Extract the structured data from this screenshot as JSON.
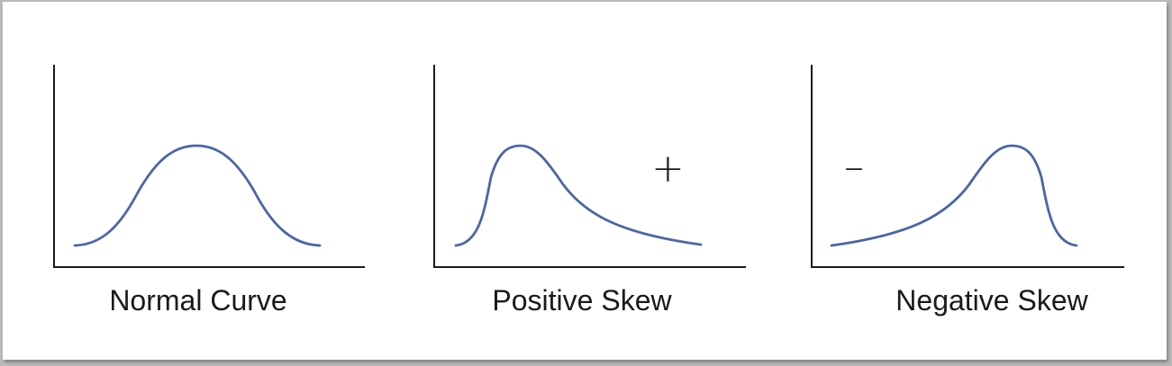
{
  "colors": {
    "curve": "#4a66a8",
    "axis": "#1a1a1a",
    "background": "#ffffff"
  },
  "panels": [
    {
      "id": "normal",
      "caption": "Normal Curve",
      "sign": ""
    },
    {
      "id": "positive",
      "caption": "Positive Skew",
      "sign": "+"
    },
    {
      "id": "negative",
      "caption": "Negative Skew",
      "sign": "–"
    }
  ]
}
